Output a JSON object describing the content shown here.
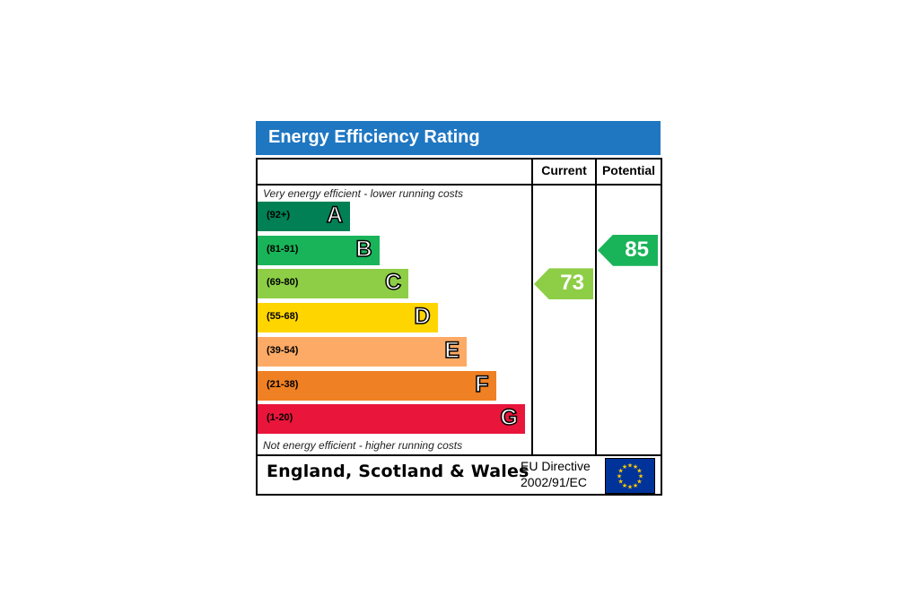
{
  "title": "Energy Efficiency Rating",
  "columns": {
    "current": "Current",
    "potential": "Potential"
  },
  "notes": {
    "top": "Very energy efficient - lower running costs",
    "bottom": "Not energy efficient - higher running costs"
  },
  "footer": {
    "region": "England, Scotland & Wales",
    "directive_line1": "EU Directive",
    "directive_line2": "2002/91/EC"
  },
  "colors": {
    "title_bar": "#1f77c2",
    "band_A": "#008054",
    "band_B": "#19b459",
    "band_C": "#8dce46",
    "band_D": "#ffd500",
    "band_E": "#fcaa65",
    "band_F": "#ef8023",
    "band_G": "#e9153b",
    "eu_flag": "#003399",
    "eu_stars": "#ffcc00"
  },
  "chart_data": {
    "type": "bar",
    "title": "Energy Efficiency Rating",
    "bands": [
      {
        "letter": "A",
        "range": "(92+)",
        "min": 92,
        "max": 100
      },
      {
        "letter": "B",
        "range": "(81-91)",
        "min": 81,
        "max": 91
      },
      {
        "letter": "C",
        "range": "(69-80)",
        "min": 69,
        "max": 80
      },
      {
        "letter": "D",
        "range": "(55-68)",
        "min": 55,
        "max": 68
      },
      {
        "letter": "E",
        "range": "(39-54)",
        "min": 39,
        "max": 54
      },
      {
        "letter": "F",
        "range": "(21-38)",
        "min": 21,
        "max": 38
      },
      {
        "letter": "G",
        "range": "(1-20)",
        "min": 1,
        "max": 20
      }
    ],
    "current": {
      "value": 73,
      "band": "C"
    },
    "potential": {
      "value": 85,
      "band": "B"
    }
  }
}
